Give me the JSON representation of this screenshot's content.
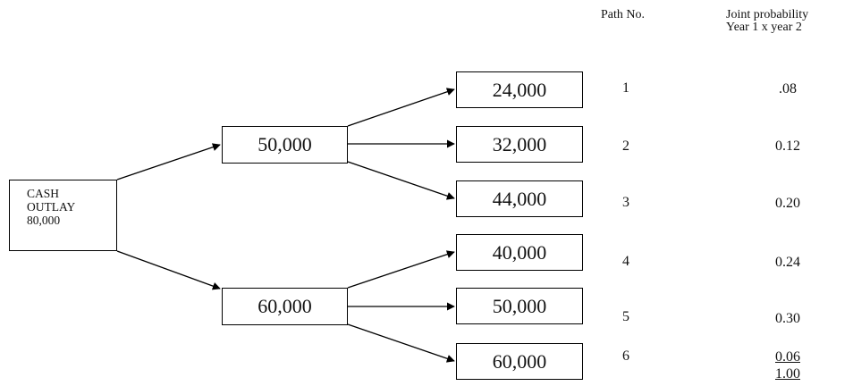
{
  "headers": {
    "path_no": "Path No.",
    "joint_line1": "Joint probability",
    "joint_line2": "Year 1 x year 2"
  },
  "root": {
    "line1": "CASH",
    "line2": "OUTLAY",
    "line3": "80,000"
  },
  "year1": [
    "50,000",
    "60,000"
  ],
  "year2": [
    "24,000",
    "32,000",
    "44,000",
    "40,000",
    "50,000",
    "60,000"
  ],
  "paths": [
    {
      "no": "1",
      "prob": ".08"
    },
    {
      "no": "2",
      "prob": "0.12"
    },
    {
      "no": "3",
      "prob": "0.20"
    },
    {
      "no": "4",
      "prob": "0.24"
    },
    {
      "no": "5",
      "prob": "0.30"
    },
    {
      "no": "6",
      "prob": "0.06"
    }
  ],
  "total": "1.00"
}
